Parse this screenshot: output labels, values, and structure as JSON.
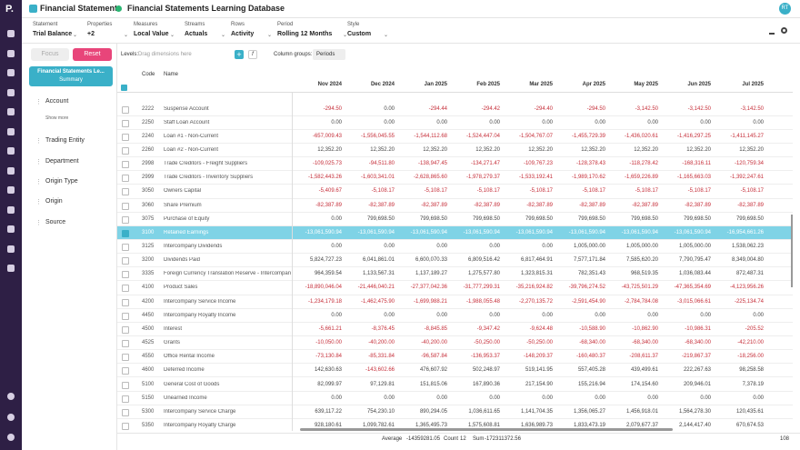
{
  "header": {
    "logo": "P.",
    "title": "Financial Statements",
    "database": "Financial Statements Learning Database",
    "user": "RT"
  },
  "filters": [
    {
      "label": "Statement",
      "value": "Trial Balance"
    },
    {
      "label": "Properties",
      "value": "+2"
    },
    {
      "label": "Measures",
      "value": "Local Value"
    },
    {
      "label": "Streams",
      "value": "Actuals"
    },
    {
      "label": "Rows",
      "value": "Activity"
    },
    {
      "label": "Period",
      "value": "Rolling 12 Months"
    },
    {
      "label": "Style",
      "value": "Custom"
    }
  ],
  "toolbar": {
    "focus": "Focus",
    "reset": "Reset",
    "levels_label": "Levels:",
    "levels_placeholder": "Drag dimensions here",
    "column_groups_label": "Column groups:",
    "column_groups_value": "Periods"
  },
  "sidebar": {
    "selected": {
      "title": "Financial Statements Le...",
      "subtitle": "Summary"
    },
    "items": [
      "Account",
      "Trading Entity",
      "Department",
      "Origin Type",
      "Origin",
      "Source"
    ],
    "show_more": "Show more"
  },
  "table": {
    "headers": {
      "code": "Code",
      "name": "Name"
    },
    "columns": [
      "Nov 2024",
      "Dec 2024",
      "Jan 2025",
      "Feb 2025",
      "Mar 2025",
      "Apr 2025",
      "May 2025",
      "Jun 2025",
      "Jul 2025"
    ],
    "rows": [
      {
        "code": "2222",
        "name": "Suspense Account",
        "values": [
          "-294.50",
          "0.00",
          "-294.44",
          "-294.42",
          "-294.40",
          "-294.50",
          "-3,142.50",
          "-3,142.50",
          "-3,142.50"
        ]
      },
      {
        "code": "2250",
        "name": "Staff Loan Account",
        "values": [
          "0.00",
          "0.00",
          "0.00",
          "0.00",
          "0.00",
          "0.00",
          "0.00",
          "0.00",
          "0.00"
        ]
      },
      {
        "code": "2240",
        "name": "Loan #1 - Non-Current",
        "values": [
          "-657,009.43",
          "-1,556,045.55",
          "-1,544,112.68",
          "-1,524,447.04",
          "-1,504,767.07",
          "-1,455,729.39",
          "-1,436,020.61",
          "-1,416,297.25",
          "-1,411,145.27"
        ]
      },
      {
        "code": "2260",
        "name": "Loan #2 - Non-Current",
        "values": [
          "12,352.20",
          "12,352.20",
          "12,352.20",
          "12,352.20",
          "12,352.20",
          "12,352.20",
          "12,352.20",
          "12,352.20",
          "12,352.20"
        ]
      },
      {
        "code": "2998",
        "name": "Trade Creditors - Freight Suppliers",
        "values": [
          "-109,025.73",
          "-94,511.80",
          "-138,947.45",
          "-134,271.47",
          "-109,767.23",
          "-128,378.43",
          "-118,278.42",
          "-168,316.11",
          "-120,759.34"
        ]
      },
      {
        "code": "2999",
        "name": "Trade Creditors - Inventory Suppliers",
        "values": [
          "-1,582,443.26",
          "-1,603,341.01",
          "-2,628,865.60",
          "-1,978,279.37",
          "-1,533,192.41",
          "-1,989,170.62",
          "-1,659,226.89",
          "-1,165,663.03",
          "-1,392,247.61"
        ]
      },
      {
        "code": "3050",
        "name": "Owners Capital",
        "values": [
          "-5,409.67",
          "-5,108.17",
          "-5,108.17",
          "-5,108.17",
          "-5,108.17",
          "-5,108.17",
          "-5,108.17",
          "-5,108.17",
          "-5,108.17"
        ]
      },
      {
        "code": "3060",
        "name": "Share Premium",
        "values": [
          "-82,387.89",
          "-82,387.89",
          "-82,387.89",
          "-82,387.89",
          "-82,387.89",
          "-82,387.89",
          "-82,387.89",
          "-82,387.89",
          "-82,387.89"
        ]
      },
      {
        "code": "3075",
        "name": "Purchase of Equity",
        "values": [
          "0.00",
          "799,698.50",
          "799,698.50",
          "799,698.50",
          "799,698.50",
          "799,698.50",
          "799,698.50",
          "799,698.50",
          "799,698.50"
        ]
      },
      {
        "code": "3100",
        "name": "Retained Earnings",
        "values": [
          "-13,061,590.94",
          "-13,061,590.94",
          "-13,061,590.94",
          "-13,061,590.94",
          "-13,061,590.94",
          "-13,061,590.94",
          "-13,061,590.94",
          "-13,061,590.94",
          "-16,954,661.26"
        ]
      },
      {
        "code": "3125",
        "name": "Intercompany Dividends",
        "values": [
          "0.00",
          "0.00",
          "0.00",
          "0.00",
          "0.00",
          "1,005,000.00",
          "1,005,000.00",
          "1,005,000.00",
          "1,538,062.23"
        ]
      },
      {
        "code": "3200",
        "name": "Dividends Paid",
        "values": [
          "5,824,727.23",
          "6,041,861.01",
          "6,600,070.33",
          "6,809,516.42",
          "6,817,464.91",
          "7,577,171.84",
          "7,585,620.20",
          "7,790,795.47",
          "8,349,004.80"
        ]
      },
      {
        "code": "3335",
        "name": "Foreign Currency Translation Reserve - Intercompany",
        "values": [
          "964,359.54",
          "1,133,567.31",
          "1,137,189.27",
          "1,275,577.80",
          "1,323,815.31",
          "782,351.43",
          "968,519.35",
          "1,036,083.44",
          "872,487.31"
        ]
      },
      {
        "code": "4100",
        "name": "Product Sales",
        "values": [
          "-18,890,046.04",
          "-21,446,040.21",
          "-27,377,042.36",
          "-31,777,299.31",
          "-35,216,924.82",
          "-39,796,274.52",
          "-43,725,501.29",
          "-47,365,354.69",
          "-4,123,956.26"
        ]
      },
      {
        "code": "4200",
        "name": "Intercompany Service Income",
        "values": [
          "-1,234,179.18",
          "-1,462,475.90",
          "-1,699,988.21",
          "-1,988,055.48",
          "-2,270,135.72",
          "-2,591,454.90",
          "-2,784,784.08",
          "-3,015,066.61",
          "-225,134.74"
        ]
      },
      {
        "code": "4450",
        "name": "Intercompany Royalty Income",
        "values": [
          "0.00",
          "0.00",
          "0.00",
          "0.00",
          "0.00",
          "0.00",
          "0.00",
          "0.00",
          "0.00"
        ]
      },
      {
        "code": "4500",
        "name": "Interest",
        "values": [
          "-5,661.21",
          "-8,376.45",
          "-8,845.85",
          "-9,347.42",
          "-9,624.48",
          "-10,588.90",
          "-10,862.90",
          "-10,986.31",
          "-205.52"
        ]
      },
      {
        "code": "4525",
        "name": "Grants",
        "values": [
          "-10,050.00",
          "-40,200.00",
          "-40,200.00",
          "-50,250.00",
          "-50,250.00",
          "-68,340.00",
          "-68,340.00",
          "-68,340.00",
          "-42,210.00"
        ]
      },
      {
        "code": "4550",
        "name": "Office Rental Income",
        "values": [
          "-73,130.84",
          "-85,331.84",
          "-96,587.84",
          "-136,953.37",
          "-148,209.37",
          "-160,480.37",
          "-208,611.37",
          "-219,867.37",
          "-18,256.00"
        ]
      },
      {
        "code": "4600",
        "name": "Deferred Income",
        "values": [
          "142,630.63",
          "-143,602.66",
          "476,607.92",
          "502,248.97",
          "519,141.95",
          "557,405.28",
          "439,499.61",
          "222,267.63",
          "98,258.58"
        ]
      },
      {
        "code": "5100",
        "name": "General Cost of Goods",
        "values": [
          "82,099.97",
          "97,129.81",
          "151,815.06",
          "167,890.36",
          "217,154.90",
          "155,216.94",
          "174,154.60",
          "209,946.01",
          "7,378.19"
        ]
      },
      {
        "code": "5150",
        "name": "Unearned Income",
        "values": [
          "0.00",
          "0.00",
          "0.00",
          "0.00",
          "0.00",
          "0.00",
          "0.00",
          "0.00",
          "0.00"
        ]
      },
      {
        "code": "5300",
        "name": "Intercompany Service Charge",
        "values": [
          "639,117.22",
          "754,230.10",
          "890,294.05",
          "1,036,611.65",
          "1,141,704.35",
          "1,356,065.27",
          "1,456,918.01",
          "1,564,278.30",
          "120,435.61"
        ]
      },
      {
        "code": "5350",
        "name": "Intercompany Royalty Charge",
        "values": [
          "928,180.61",
          "1,099,782.61",
          "1,365,495.73",
          "1,575,608.81",
          "1,636,989.73",
          "1,833,473.19",
          "2,079,677.37",
          "2,144,417.40",
          "670,674.53"
        ]
      }
    ]
  },
  "status": [
    {
      "label": "Average",
      "value": "-14359281.05"
    },
    {
      "label": "Count",
      "value": "12"
    },
    {
      "label": "Sum",
      "value": "-172311372.56"
    }
  ],
  "page": "108"
}
